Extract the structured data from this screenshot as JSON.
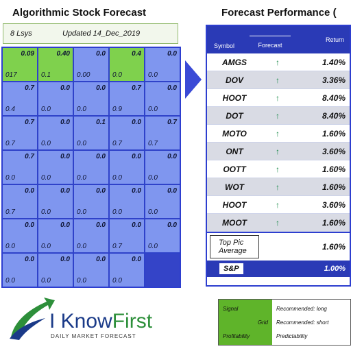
{
  "titles": {
    "left": "Algorithmic Stock Forecast",
    "right": "Forecast Performance (",
    "left_sub_label": "8 Lsys",
    "left_sub_date": "Updated 14_Dec_2019"
  },
  "grid": {
    "rows": [
      [
        {
          "top": "0.09",
          "bottom": "017",
          "tone": "green"
        },
        {
          "top": "0.40",
          "bottom": "0.1",
          "tone": "green"
        },
        {
          "top": "0.0",
          "bottom": "0.00",
          "tone": "blue"
        },
        {
          "top": "0.4",
          "bottom": "0.0",
          "tone": "green"
        },
        {
          "top": "0.0",
          "bottom": "0.0",
          "tone": "blue"
        }
      ],
      [
        {
          "top": "0.7",
          "bottom": "0.4",
          "tone": "blue"
        },
        {
          "top": "0.0",
          "bottom": "0.0",
          "tone": "blue"
        },
        {
          "top": "0.0",
          "bottom": "0.0",
          "tone": "blue"
        },
        {
          "top": "0.7",
          "bottom": "0.9",
          "tone": "blue"
        },
        {
          "top": "0.0",
          "bottom": "0.0",
          "tone": "blue"
        }
      ],
      [
        {
          "top": "0.7",
          "bottom": "0.7",
          "tone": "blue"
        },
        {
          "top": "0.0",
          "bottom": "0.0",
          "tone": "blue"
        },
        {
          "top": "0.1",
          "bottom": "0.0",
          "tone": "blue"
        },
        {
          "top": "0.0",
          "bottom": "0.7",
          "tone": "blue"
        },
        {
          "top": "0.7",
          "bottom": "0.7",
          "tone": "blue"
        }
      ],
      [
        {
          "top": "0.7",
          "bottom": "0.0",
          "tone": "blue"
        },
        {
          "top": "0.0",
          "bottom": "0.0",
          "tone": "blue"
        },
        {
          "top": "0.0",
          "bottom": "0.0",
          "tone": "blue"
        },
        {
          "top": "0.0",
          "bottom": "0.0",
          "tone": "blue"
        },
        {
          "top": "0.0",
          "bottom": "0.0",
          "tone": "blue"
        }
      ],
      [
        {
          "top": "0.0",
          "bottom": "0.7",
          "tone": "blue"
        },
        {
          "top": "0.0",
          "bottom": "0.0",
          "tone": "blue"
        },
        {
          "top": "0.0",
          "bottom": "0.0",
          "tone": "blue"
        },
        {
          "top": "0.0",
          "bottom": "0.0",
          "tone": "blue"
        },
        {
          "top": "0.0",
          "bottom": "0.0",
          "tone": "blue"
        }
      ],
      [
        {
          "top": "0.0",
          "bottom": "0.0",
          "tone": "blue"
        },
        {
          "top": "0.0",
          "bottom": "0.0",
          "tone": "blue"
        },
        {
          "top": "0.0",
          "bottom": "0.0",
          "tone": "blue"
        },
        {
          "top": "0.0",
          "bottom": "0.7",
          "tone": "blue"
        },
        {
          "top": "0.0",
          "bottom": "0.0",
          "tone": "blue"
        }
      ],
      [
        {
          "top": "0.0",
          "bottom": "0.0",
          "tone": "blue"
        },
        {
          "top": "0.0",
          "bottom": "0.0",
          "tone": "blue"
        },
        {
          "top": "0.0",
          "bottom": "0.0",
          "tone": "blue"
        },
        {
          "top": "0.0",
          "bottom": "0.0",
          "tone": "blue"
        },
        {
          "top": "",
          "bottom": "",
          "tone": "dark"
        }
      ]
    ]
  },
  "table": {
    "headers": [
      "Symbol",
      "Forecast",
      "Return"
    ],
    "rows": [
      {
        "name": "AMGS",
        "arrow": "↑",
        "value": "1.40%"
      },
      {
        "name": "DOV",
        "arrow": "↑",
        "value": "3.36%"
      },
      {
        "name": "HOOT",
        "arrow": "↑",
        "value": "8.40%"
      },
      {
        "name": "DOT",
        "arrow": "↑",
        "value": "8.40%"
      },
      {
        "name": "MOTO",
        "arrow": "↑",
        "value": "1.60%"
      },
      {
        "name": "ONT",
        "arrow": "↑",
        "value": "3.60%"
      },
      {
        "name": "OOTT",
        "arrow": "↑",
        "value": "1.60%"
      },
      {
        "name": "WOT",
        "arrow": "↑",
        "value": "1.60%"
      },
      {
        "name": "HOOT",
        "arrow": "↑",
        "value": "3.60%"
      },
      {
        "name": "MOOT",
        "arrow": "↑",
        "value": "1.60%"
      }
    ],
    "average_label_1": "Top Pic",
    "average_label_2": "Average",
    "average_value": "1.60%",
    "footer_label": "S&P",
    "footer_value": "1.00%"
  },
  "legend": {
    "keys": [
      "Signal",
      "Grid",
      "Profitability"
    ],
    "values": [
      "Recommended: long",
      "Recommended: short",
      "Predictability"
    ]
  },
  "logo": {
    "brand_1": "I Know",
    "brand_2": "First",
    "tagline": "DAILY MARKET FORECAST"
  },
  "colors": {
    "accent_blue": "#2a3ab6",
    "cell_blue": "#7f96ef",
    "cell_green": "#7fd14d",
    "arrow_green": "#1b8a4a"
  }
}
